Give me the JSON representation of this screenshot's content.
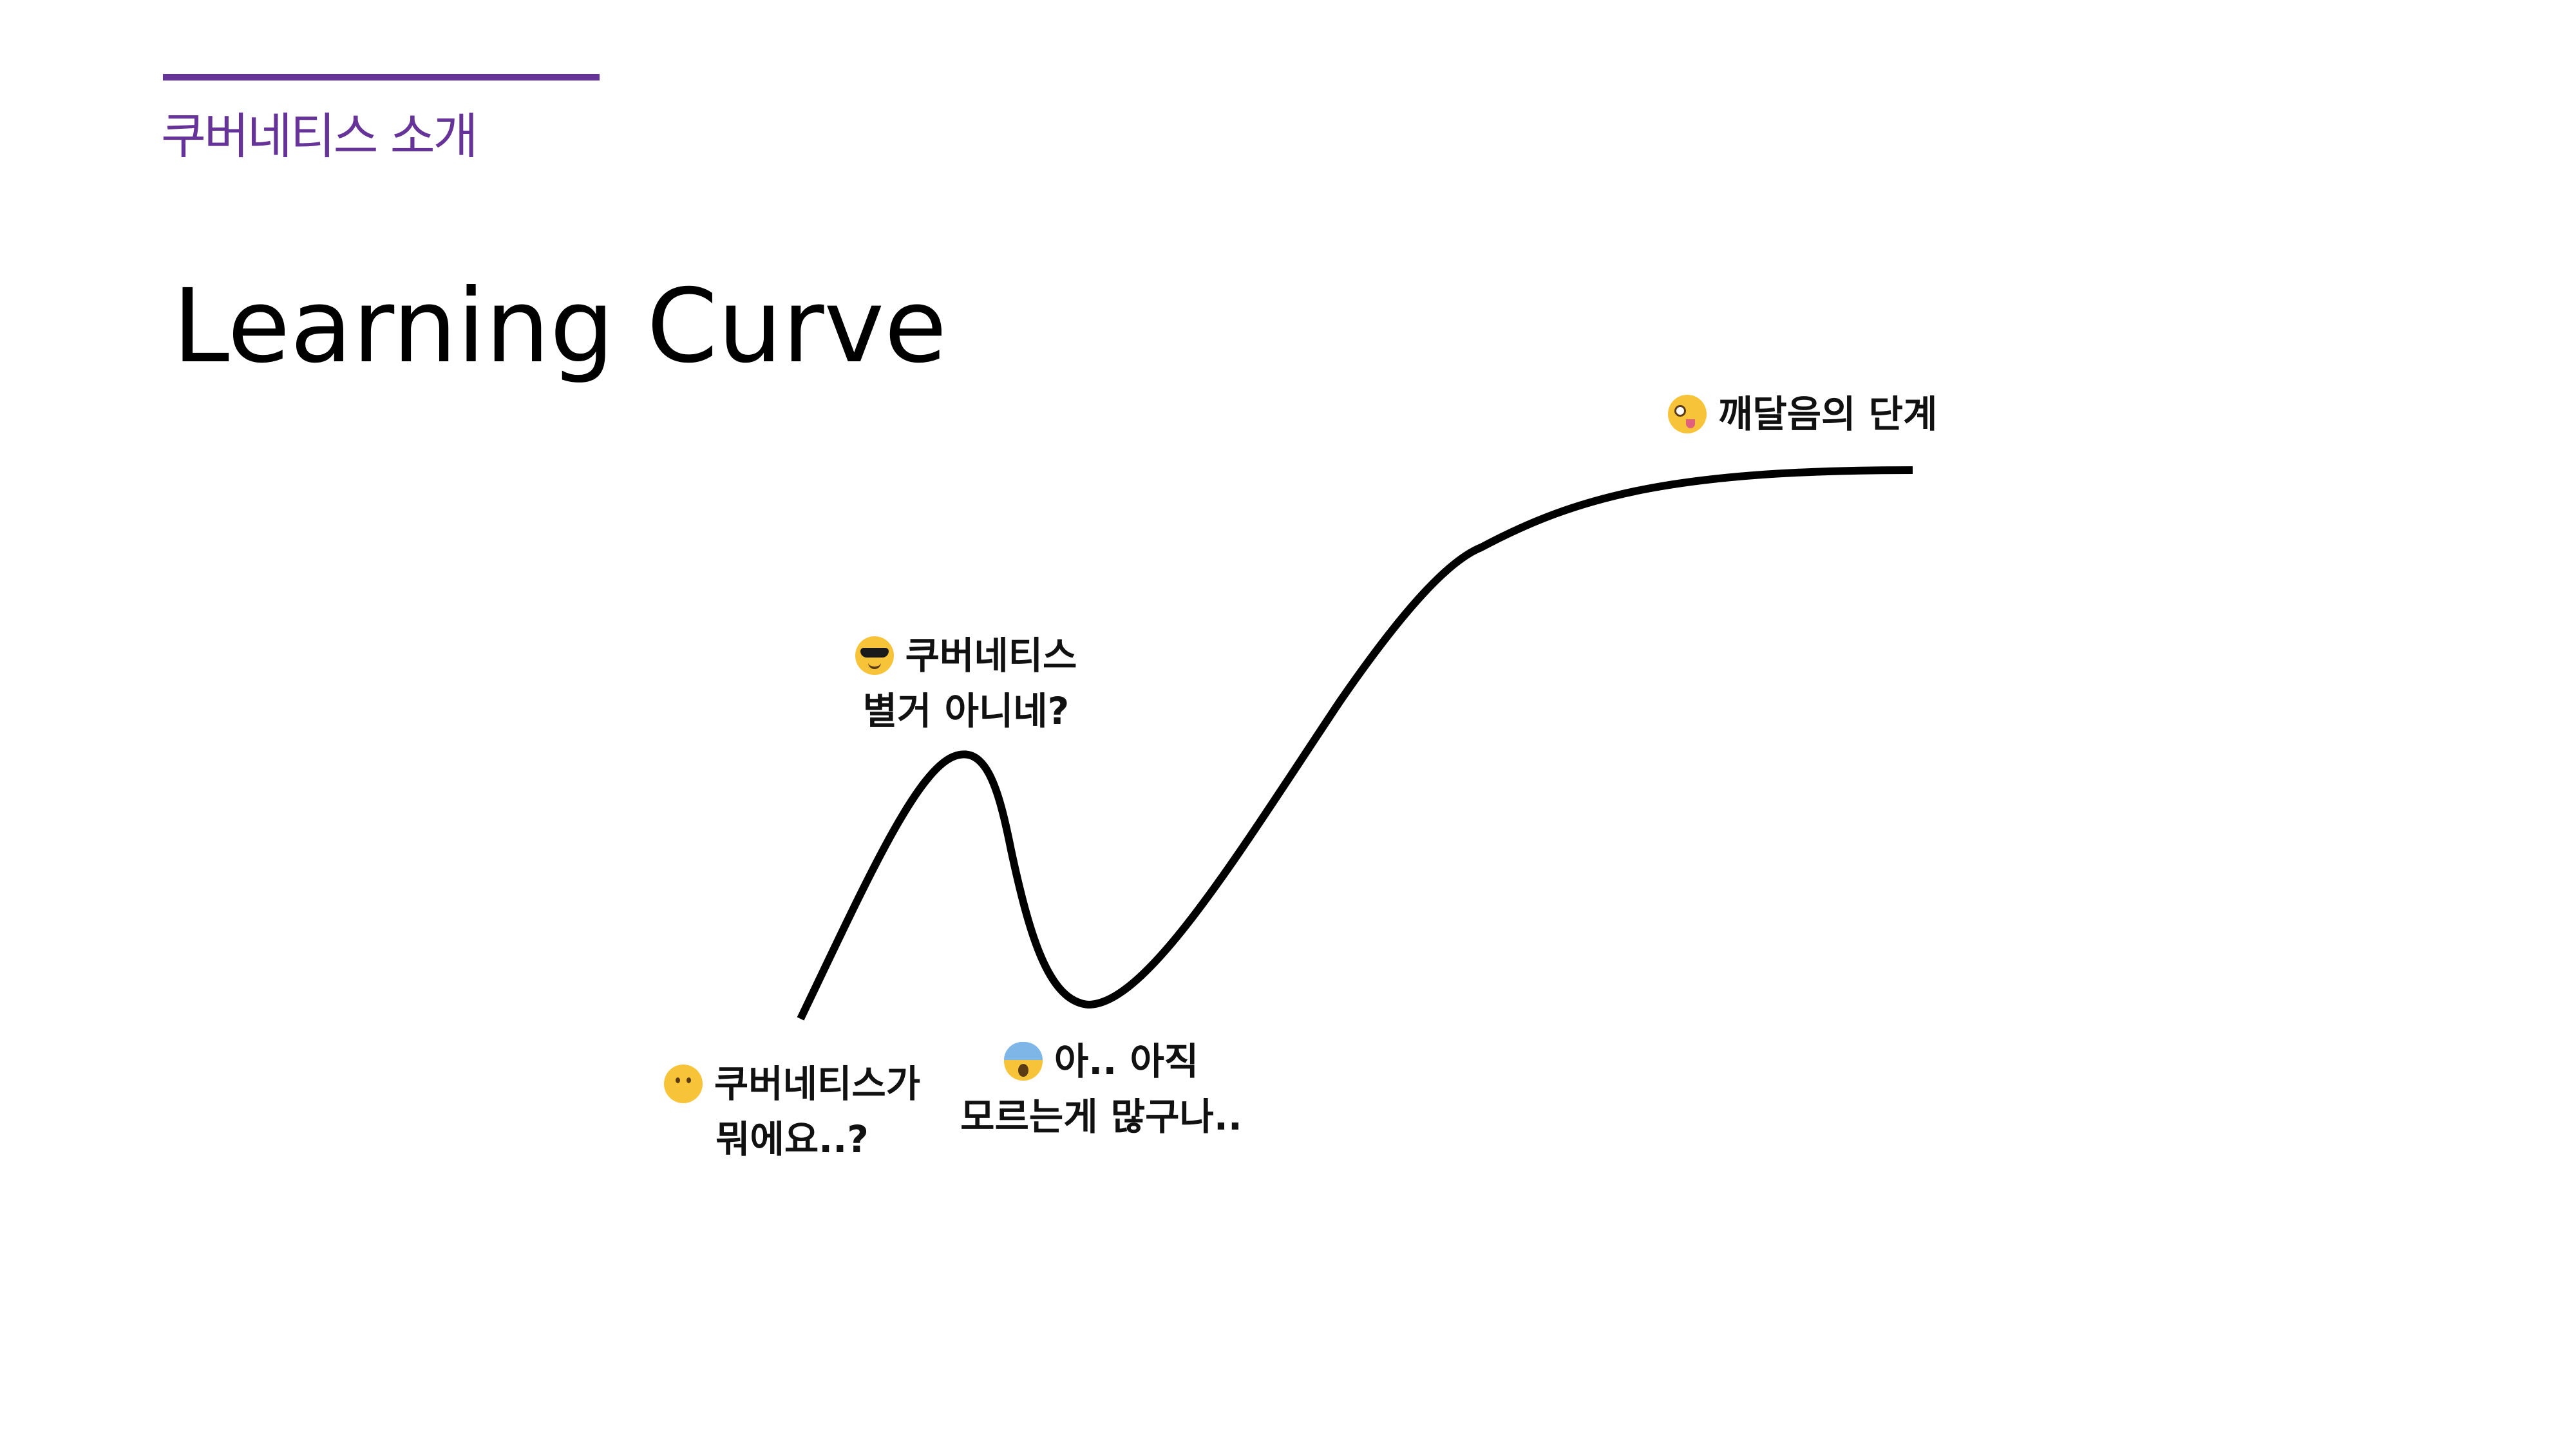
{
  "header": {
    "section_title": "쿠버네티스 소개",
    "accent_color": "#663399"
  },
  "slide": {
    "title": "Learning Curve"
  },
  "stages": [
    {
      "emoji": "thinking-face-icon",
      "line1": "쿠버네티스가",
      "line2": "뭐에요..?"
    },
    {
      "emoji": "cool-sunglasses-face-icon",
      "line1": "쿠버네티스",
      "line2": "별거 아니네?"
    },
    {
      "emoji": "screaming-face-icon",
      "line1": "아.. 아직",
      "line2": "모르는게 많구나.."
    },
    {
      "emoji": "zany-face-icon",
      "line1": "깨달음의 단계",
      "line2": ""
    }
  ]
}
